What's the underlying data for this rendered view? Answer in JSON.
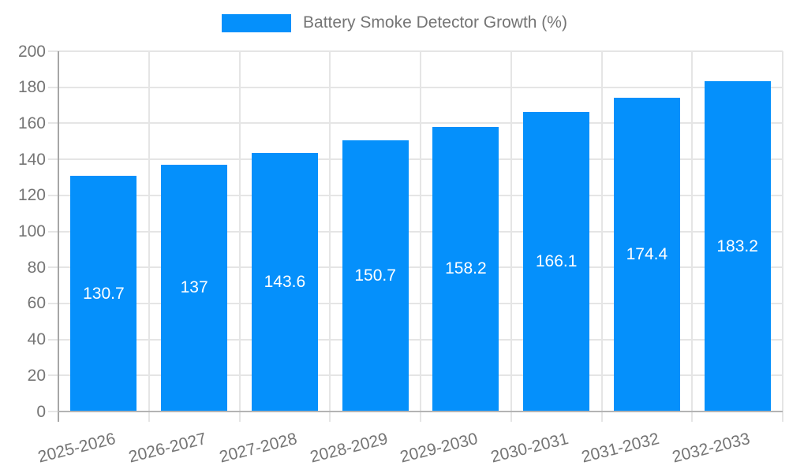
{
  "legend": {
    "label": "Battery Smoke Detector Growth (%)"
  },
  "colors": {
    "bar": "#0590fb",
    "axis_text": "#757575",
    "value_text": "#ffffff",
    "gridline": "#e5e5e5",
    "axis_line": "#a6a6a6",
    "baseline": "#b3b3b3"
  },
  "chart_data": {
    "type": "bar",
    "title": "Battery Smoke Detector Growth (%)",
    "categories": [
      "2025-2026",
      "2026-2027",
      "2027-2028",
      "2028-2029",
      "2029-2030",
      "2030-2031",
      "2031-2032",
      "2032-2033"
    ],
    "values": [
      130.7,
      137,
      143.6,
      150.7,
      158.2,
      166.1,
      174.4,
      183.2
    ],
    "xlabel": "",
    "ylabel": "",
    "ylim": [
      0,
      200
    ],
    "ytick_step": 20,
    "yticks": [
      0,
      20,
      40,
      60,
      80,
      100,
      120,
      140,
      160,
      180,
      200
    ],
    "grid": true,
    "legend_position": "top",
    "value_label_position": "inside-center",
    "x_label_rotation_deg": -14
  }
}
